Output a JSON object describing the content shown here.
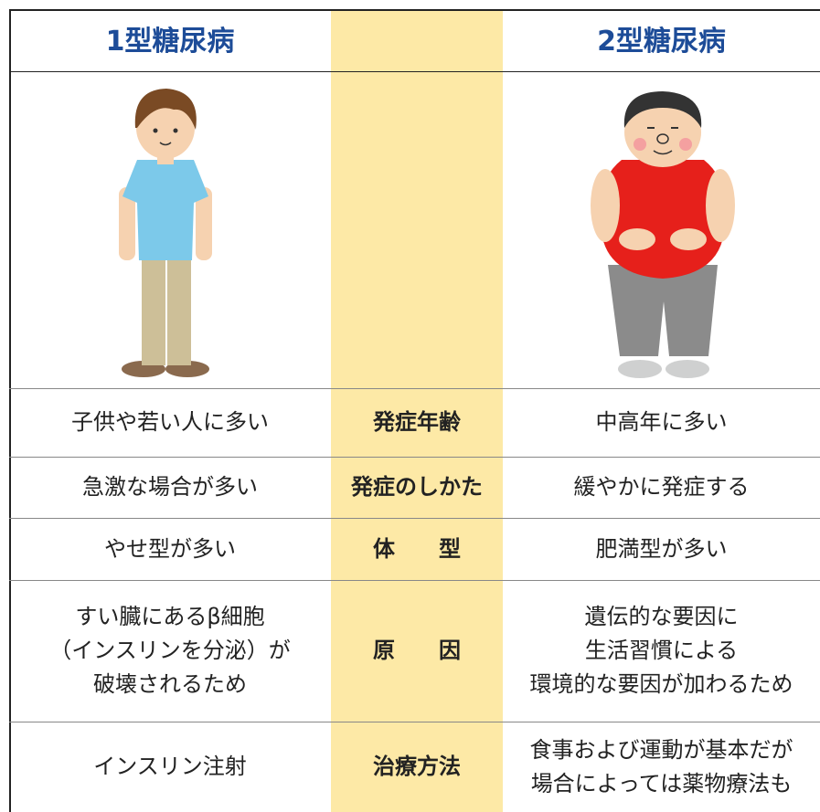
{
  "header": {
    "left": "1型糖尿病",
    "right": "2型糖尿病"
  },
  "rows": [
    {
      "left": [
        "子供や若い人に多い"
      ],
      "label": "発症年齢",
      "right": [
        "中高年に多い"
      ]
    },
    {
      "left": [
        "急激な場合が多い"
      ],
      "label": "発症のしかた",
      "right": [
        "緩やかに発症する"
      ]
    },
    {
      "left": [
        "やせ型が多い"
      ],
      "label": "体　　型",
      "right": [
        "肥満型が多い"
      ]
    },
    {
      "left": [
        "すい臓にあるβ細胞",
        "（インスリンを分泌）が",
        "破壊されるため"
      ],
      "label": "原　　因",
      "right": [
        "遺伝的な要因に",
        "生活習慣による",
        "環境的な要因が加わるため"
      ]
    },
    {
      "left": [
        "インスリン注射"
      ],
      "label": "治療方法",
      "right": [
        "食事および運動が基本だが",
        "場合によっては薬物療法も"
      ]
    }
  ]
}
